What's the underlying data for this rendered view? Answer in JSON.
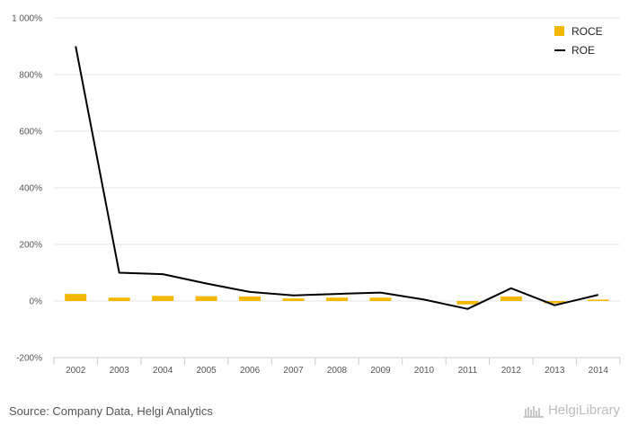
{
  "chart_data": {
    "type": "bar",
    "categories": [
      "2002",
      "2003",
      "2004",
      "2005",
      "2006",
      "2007",
      "2008",
      "2009",
      "2010",
      "2011",
      "2012",
      "2013",
      "2014"
    ],
    "series": [
      {
        "name": "ROCE",
        "type": "bar",
        "color": "#f5b800",
        "values": [
          25,
          12,
          18,
          17,
          16,
          9,
          12,
          12,
          0,
          -12,
          16,
          -8,
          5
        ]
      },
      {
        "name": "ROE",
        "type": "line",
        "color": "#000000",
        "values": [
          900,
          100,
          95,
          62,
          32,
          20,
          25,
          30,
          5,
          -28,
          45,
          -15,
          22
        ]
      }
    ],
    "ylim": [
      -200,
      1000
    ],
    "yticks": [
      {
        "value": 1000,
        "label": "1 000%"
      },
      {
        "value": 800,
        "label": "800%"
      },
      {
        "value": 600,
        "label": "600%"
      },
      {
        "value": 400,
        "label": "400%"
      },
      {
        "value": 200,
        "label": "200%"
      },
      {
        "value": 0,
        "label": "0%"
      },
      {
        "value": -200,
        "label": "-200%"
      }
    ],
    "grid": true,
    "legend_position": "top-right"
  },
  "footer": {
    "source": "Source: Company Data, Helgi Analytics",
    "brand": "HelgiLibrary"
  }
}
